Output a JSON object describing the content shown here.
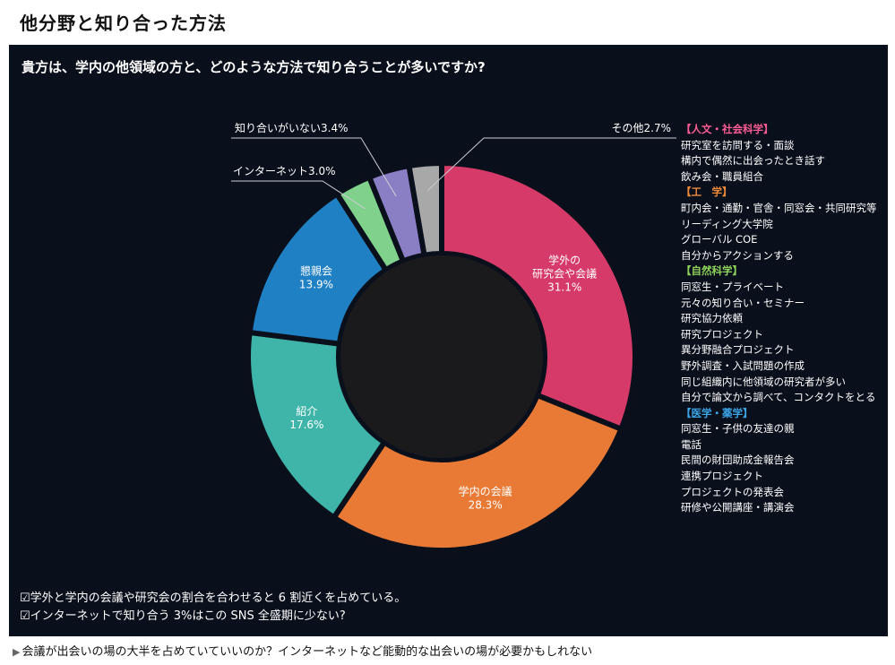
{
  "page_title": "他分野と知り合った方法",
  "question": "貴方は、学内の他領域の方と、どのような方法で知り合うことが多いですか?",
  "chart_data": {
    "type": "pie",
    "style": "donut",
    "title": "",
    "slices": [
      {
        "label": "学外の研究会や会議",
        "label_lines": [
          "学外の",
          "研究会や会議"
        ],
        "value": 31.1,
        "value_text": "31.1%",
        "color": "#d63a68",
        "label_position": "inside"
      },
      {
        "label": "学内の会議",
        "label_lines": [
          "学内の会議"
        ],
        "value": 28.3,
        "value_text": "28.3%",
        "color": "#e97a35",
        "label_position": "inside"
      },
      {
        "label": "紹介",
        "label_lines": [
          "紹介"
        ],
        "value": 17.6,
        "value_text": "17.6%",
        "color": "#3fb5a9",
        "label_position": "inside"
      },
      {
        "label": "懇親会",
        "label_lines": [
          "懇親会"
        ],
        "value": 13.9,
        "value_text": "13.9%",
        "color": "#1f80c4",
        "label_position": "inside"
      },
      {
        "label": "インターネット",
        "label_lines": [
          "インターネット3.0%"
        ],
        "value": 3.0,
        "value_text": "",
        "color": "#7fd18b",
        "label_position": "outside"
      },
      {
        "label": "知り合いがいない",
        "label_lines": [
          "知り合いがいない3.4%"
        ],
        "value": 3.4,
        "value_text": "",
        "color": "#8a7fc4",
        "label_position": "outside"
      },
      {
        "label": "その他",
        "label_lines": [
          "その他2.7%"
        ],
        "value": 2.7,
        "value_text": "",
        "color": "#a8a8a8",
        "label_position": "outside"
      }
    ]
  },
  "legend": {
    "groups": [
      {
        "heading": "【人文・社会科学】",
        "color": "#ff5c95",
        "items": [
          "研究室を訪問する・面談",
          "構内で偶然に出会ったとき話す",
          "飲み会・職員組合"
        ]
      },
      {
        "heading": "【工　学】",
        "color": "#f08a3a",
        "items": [
          "町内会・通勤・官舎・同窓会・共同研究等",
          "リーディング大学院",
          "グローバル COE",
          "自分からアクションする"
        ]
      },
      {
        "heading": "【自然科学】",
        "color": "#8fd45a",
        "items": [
          "同窓生・プライベート",
          "元々の知り合い・セミナー",
          "研究協力依頼",
          "研究プロジェクト",
          "異分野融合プロジェクト",
          "野外調査・入試問題の作成",
          "同じ組織内に他領域の研究者が多い",
          "自分で論文から調べて、コンタクトをとる"
        ]
      },
      {
        "heading": "【医学・薬学】",
        "color": "#3aa6e8",
        "items": [
          "同窓生・子供の友達の親",
          "電話",
          "民間の財団助成金報告会",
          "連携プロジェクト",
          "プロジェクトの発表会",
          "研修や公開講座・講演会"
        ]
      }
    ]
  },
  "notes": [
    "☑学外と学内の会議や研究会の割合を合わせると 6 割近くを占めている。",
    "☑インターネットで知り合う 3%はこの SNS 全盛期に少ない?"
  ],
  "footer": {
    "marker": "▶",
    "text": "会議が出会いの場の大半を占めていていいのか？インターネットなど能動的な出会いの場が必要かもしれない"
  }
}
